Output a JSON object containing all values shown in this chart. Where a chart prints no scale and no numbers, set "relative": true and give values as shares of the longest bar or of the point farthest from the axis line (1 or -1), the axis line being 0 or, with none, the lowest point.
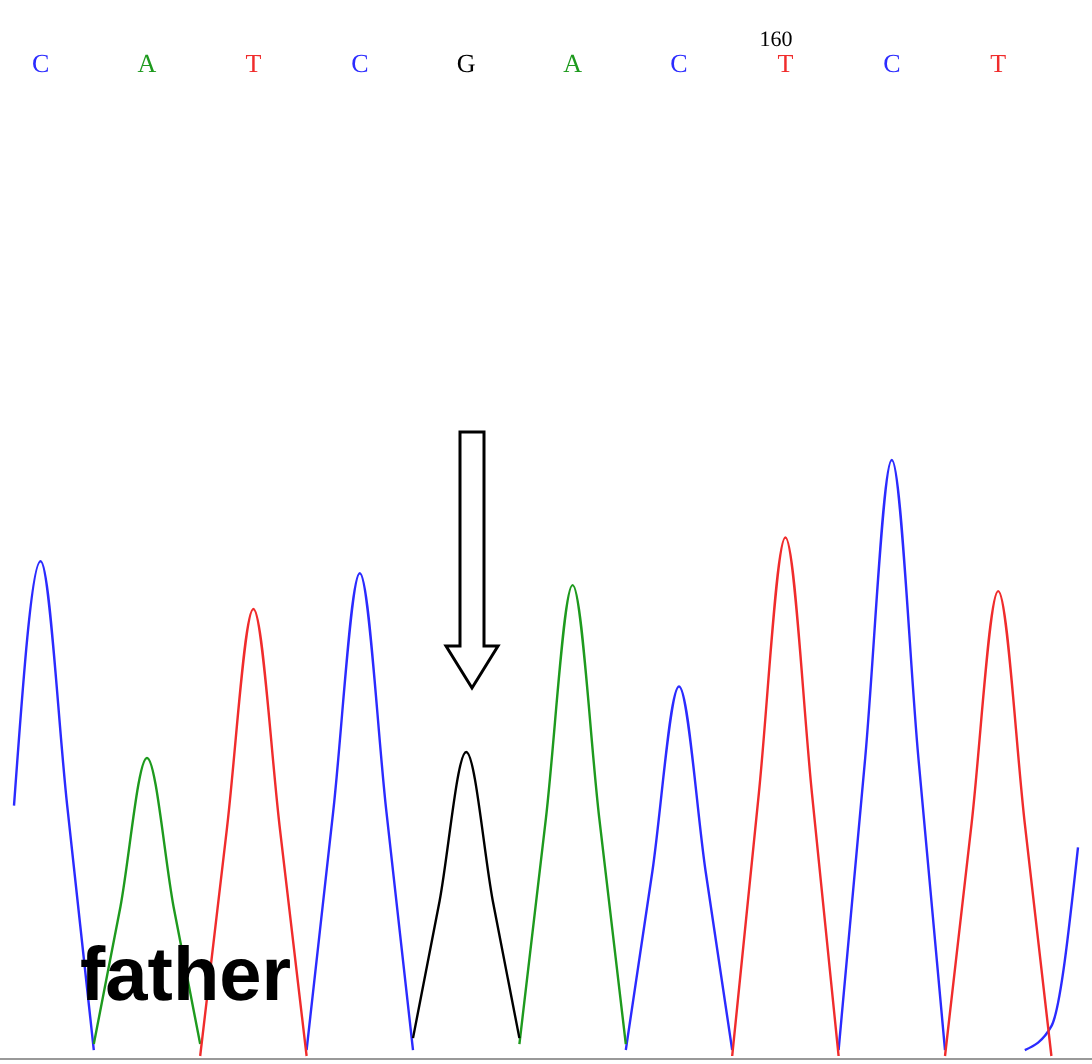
{
  "chart_data": {
    "type": "line",
    "relative": true,
    "categories": [
      null,
      "C",
      null,
      null,
      null,
      "A",
      null,
      null,
      null,
      "T",
      null,
      null,
      null,
      "C",
      null,
      null,
      null,
      "G",
      null,
      null,
      null,
      "A",
      null,
      null,
      null,
      "C",
      null,
      null,
      null,
      "T",
      null,
      null,
      null,
      "C",
      null,
      null,
      null,
      "T",
      null,
      null,
      null
    ],
    "series": [
      {
        "color": "#2b2bff",
        "values": [
          0.42,
          0.83,
          0.42,
          0.01,
          null,
          null,
          null,
          null,
          null,
          null,
          null,
          0.01,
          0.41,
          0.81,
          0.41,
          0.01,
          null,
          null,
          null,
          null,
          null,
          null,
          null,
          0.01,
          0.31,
          0.62,
          0.31,
          0.01,
          null,
          null,
          null,
          0.01,
          0.5,
          1.0,
          0.5,
          0.01,
          null,
          null,
          0.01,
          0.05,
          0.35
        ]
      },
      {
        "color": "#1e9a1e",
        "values": [
          null,
          null,
          null,
          0.02,
          0.25,
          0.5,
          0.25,
          0.02,
          null,
          null,
          null,
          null,
          null,
          null,
          null,
          null,
          null,
          null,
          null,
          0.02,
          0.4,
          0.79,
          0.4,
          0.02,
          null,
          null,
          null,
          null,
          null,
          null,
          null,
          null,
          null,
          null,
          null,
          null,
          null,
          null,
          null,
          null,
          null
        ]
      },
      {
        "color": "#f02c2c",
        "values": [
          null,
          null,
          null,
          null,
          null,
          null,
          null,
          0,
          0.38,
          0.75,
          0.38,
          0,
          null,
          null,
          null,
          null,
          null,
          null,
          null,
          null,
          null,
          null,
          null,
          null,
          null,
          null,
          null,
          0,
          0.44,
          0.87,
          0.44,
          0,
          null,
          null,
          null,
          0,
          0.39,
          0.78,
          0.39,
          0,
          null
        ]
      },
      {
        "color": "#000000",
        "values": [
          null,
          null,
          null,
          null,
          null,
          null,
          null,
          null,
          null,
          null,
          null,
          null,
          null,
          null,
          null,
          0.03,
          0.26,
          0.51,
          0.26,
          0.03,
          null,
          null,
          null,
          null,
          null,
          null,
          null,
          null,
          null,
          null,
          null,
          null,
          null,
          null,
          null,
          null,
          null,
          null,
          null,
          null,
          null
        ]
      }
    ],
    "annotations": [
      "160",
      "father"
    ]
  }
}
